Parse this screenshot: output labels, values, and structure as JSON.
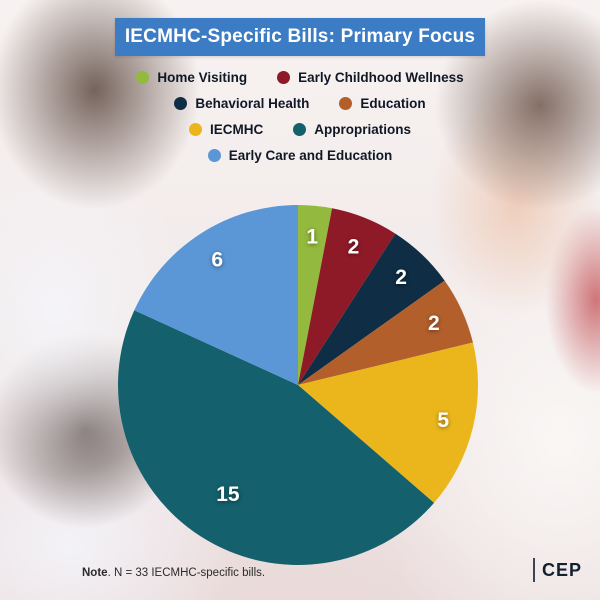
{
  "header": {
    "title": "IECMHC-Specific Bills: Primary Focus",
    "bg_color": "#3c7cc5"
  },
  "chart_data": {
    "type": "pie",
    "title": "IECMHC-Specific Bills: Primary Focus",
    "categories": [
      "Home Visiting",
      "Early Childhood Wellness",
      "Behavioral Health",
      "Education",
      "IECMHC",
      "Appropriations",
      "Early Care and Education"
    ],
    "values": [
      1,
      2,
      2,
      2,
      5,
      15,
      6
    ],
    "data_labels": [
      "1",
      "2",
      "2",
      "2",
      "5",
      "15",
      "6"
    ],
    "colors": [
      "#94b93f",
      "#8e1a28",
      "#0f2d44",
      "#b25f2b",
      "#ebb61c",
      "#14606d",
      "#5b97d6"
    ],
    "total": 33,
    "start_angle": 0,
    "direction": "clockwise",
    "legend_position": "top",
    "label_color": "#ffffff"
  },
  "note": {
    "bold": "Note",
    "rest": ". N = 33 IECMHC-specific bills."
  },
  "footer": {
    "logo": "CEP"
  }
}
